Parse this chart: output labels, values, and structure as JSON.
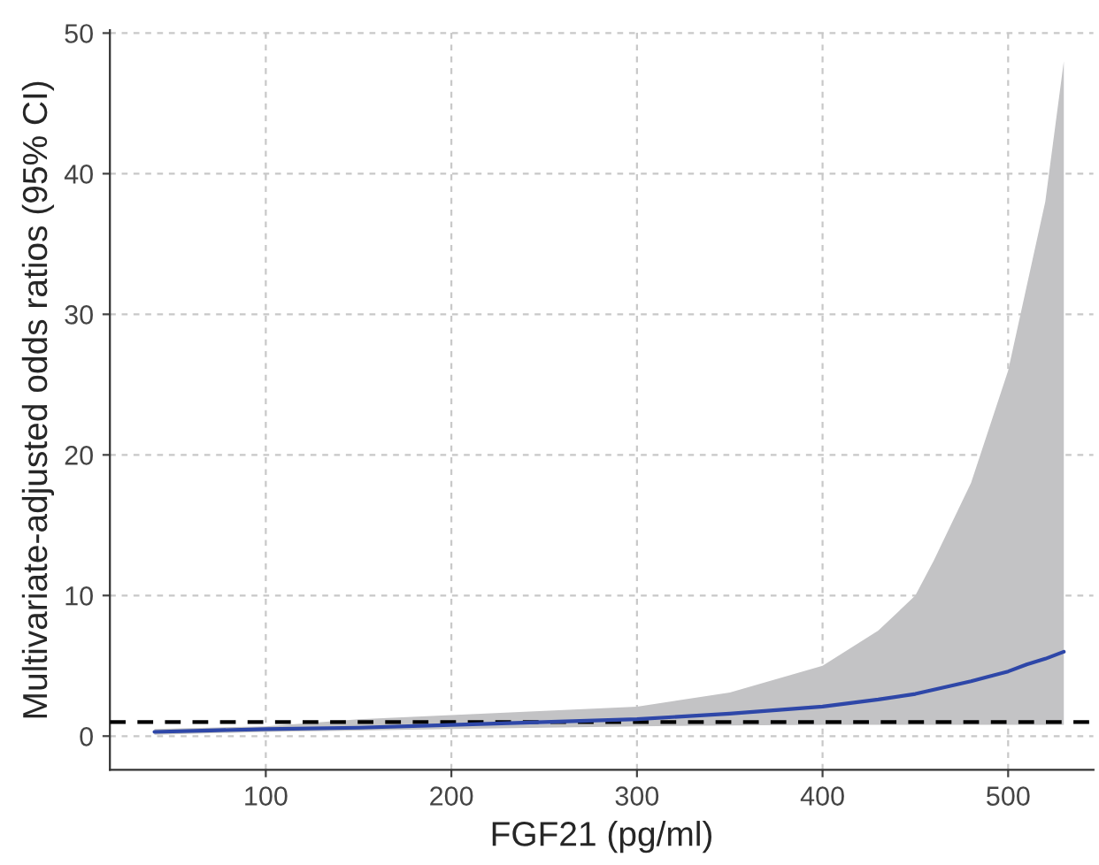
{
  "chart_data": {
    "type": "line",
    "xlabel": "FGF21 (pg/ml)",
    "ylabel": "Multivariate-adjusted odds ratios (95% CI)",
    "x": [
      40,
      70,
      100,
      150,
      200,
      250,
      300,
      350,
      400,
      430,
      450,
      460,
      480,
      500,
      510,
      520,
      530
    ],
    "series": [
      {
        "color": "#2e47a8",
        "values": [
          0.3,
          0.4,
          0.5,
          0.6,
          0.8,
          1.0,
          1.2,
          1.6,
          2.1,
          2.6,
          3.0,
          3.3,
          3.9,
          4.6,
          5.1,
          5.5,
          6.0
        ],
        "lower": [
          0.1,
          0.2,
          0.3,
          0.4,
          0.5,
          0.6,
          0.7,
          0.75,
          0.8,
          0.8,
          0.8,
          0.8,
          0.8,
          0.8,
          0.8,
          0.8,
          0.8
        ],
        "upper": [
          0.5,
          0.6,
          0.7,
          1.2,
          1.5,
          1.8,
          2.1,
          3.1,
          5.0,
          7.5,
          10.0,
          12.5,
          18.0,
          26.0,
          32.0,
          38.0,
          48.0
        ]
      }
    ],
    "xlim": [
      16,
      546
    ],
    "ylim": [
      -2.4,
      50.2
    ],
    "xticks": [
      100,
      200,
      300,
      400,
      500
    ],
    "yticks": [
      0,
      10,
      20,
      30,
      40,
      50
    ],
    "ref_lines": [
      {
        "axis": "y",
        "value": 1,
        "color": "#000000",
        "line_style": "dashed"
      }
    ],
    "grid": true,
    "line_style": "solid",
    "marker": "none"
  }
}
